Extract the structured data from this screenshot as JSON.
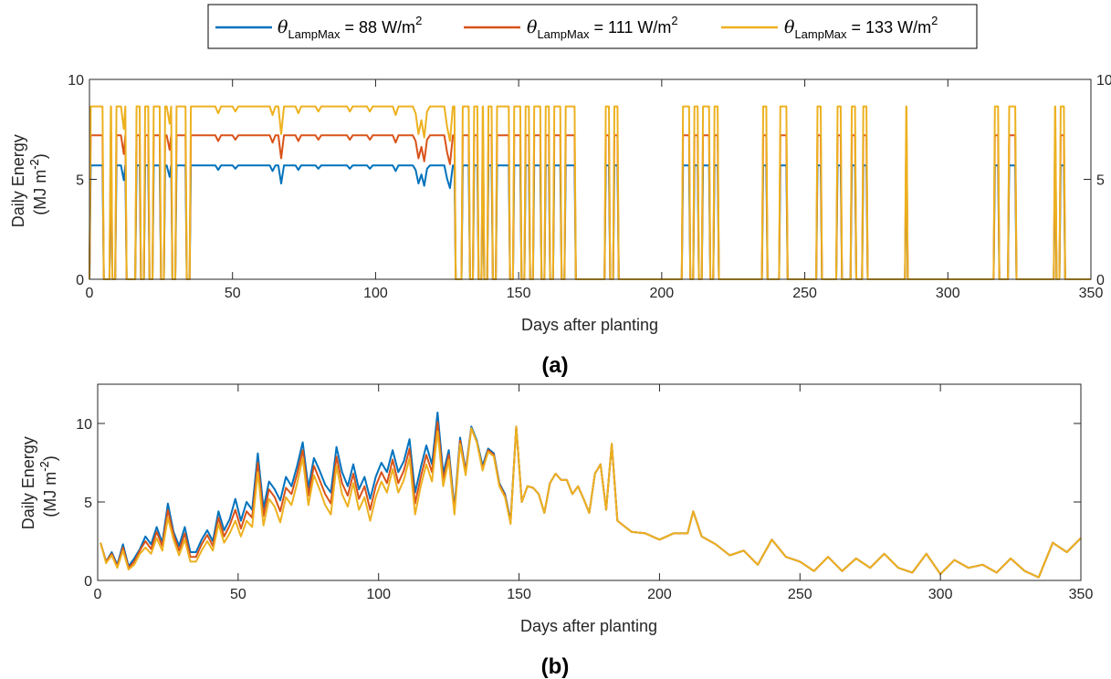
{
  "legend": {
    "symbol": "θ",
    "subscript": "LampMax",
    "entries": [
      {
        "value_text": " = 88 W/m",
        "sup": "2",
        "color": "#0072BD"
      },
      {
        "value_text": " = 111 W/m",
        "sup": "2",
        "color": "#D95319"
      },
      {
        "value_text": " = 133 W/m",
        "sup": "2",
        "color": "#EDB120"
      }
    ]
  },
  "chart_data": [
    {
      "type": "line",
      "panel_label": "(a)",
      "xlabel": "Days after planting",
      "ylabel_line1": "Daily Energy",
      "ylabel_line2": "(MJ m",
      "ylabel_sup": "-2",
      "ylabel_close": ")",
      "xlim": [
        0,
        350
      ],
      "ylim": [
        0,
        10
      ],
      "xticks": [
        "0",
        "50",
        "100",
        "150",
        "200",
        "250",
        "300",
        "350"
      ],
      "yticks": [
        "0",
        "5",
        "10"
      ],
      "series": [
        {
          "name": "θLampMax = 88 W/m2",
          "color": "#0072BD",
          "level": 5.7
        },
        {
          "name": "θLampMax = 111 W/m2",
          "color": "#D95319",
          "level": 7.2
        },
        {
          "name": "θLampMax = 133 W/m2",
          "color": "#EDB120",
          "level": 8.65
        }
      ],
      "on_intervals": [
        [
          0,
          5
        ],
        [
          7,
          8
        ],
        [
          9,
          13
        ],
        [
          16,
          18
        ],
        [
          19,
          21
        ],
        [
          22,
          25
        ],
        [
          26,
          29
        ],
        [
          30,
          34
        ],
        [
          35,
          128
        ],
        [
          130,
          133
        ],
        [
          134,
          136
        ],
        [
          137,
          138
        ],
        [
          139,
          141
        ],
        [
          142,
          147
        ],
        [
          148,
          151
        ],
        [
          152,
          154
        ],
        [
          155,
          158
        ],
        [
          159,
          161
        ],
        [
          162,
          165
        ],
        [
          166,
          170
        ],
        [
          180,
          182
        ],
        [
          183,
          185
        ],
        [
          207,
          210
        ],
        [
          211,
          213
        ],
        [
          214,
          217
        ],
        [
          218,
          220
        ],
        [
          235,
          237
        ],
        [
          241,
          244
        ],
        [
          254,
          256
        ],
        [
          261,
          263
        ],
        [
          266,
          268
        ],
        [
          270,
          272
        ],
        [
          285,
          286
        ],
        [
          316,
          318
        ],
        [
          321,
          324
        ],
        [
          337,
          338
        ],
        [
          339,
          341
        ]
      ],
      "dips": [
        [
          12,
          0.87
        ],
        [
          22,
          0.87
        ],
        [
          28,
          0.9
        ],
        [
          34,
          0.9
        ],
        [
          45,
          0.96
        ],
        [
          51,
          0.97
        ],
        [
          64,
          0.95
        ],
        [
          67,
          0.84
        ],
        [
          73,
          0.96
        ],
        [
          80,
          0.97
        ],
        [
          91,
          0.97
        ],
        [
          98,
          0.97
        ],
        [
          107,
          0.95
        ],
        [
          114,
          0.96
        ],
        [
          115,
          0.84
        ],
        [
          116,
          0.92
        ],
        [
          117,
          0.82
        ],
        [
          118,
          0.97
        ],
        [
          125,
          0.88
        ],
        [
          126,
          0.8
        ]
      ]
    },
    {
      "type": "line",
      "panel_label": "(b)",
      "xlabel": "Days after planting",
      "ylabel_line1": "Daily Energy",
      "ylabel_line2": "(MJ m",
      "ylabel_sup": "-2",
      "ylabel_close": ")",
      "xlim": [
        0,
        350
      ],
      "ylim": [
        0,
        12.5
      ],
      "xticks": [
        "0",
        "50",
        "100",
        "150",
        "200",
        "250",
        "300",
        "350"
      ],
      "yticks": [
        "0",
        "5",
        "10"
      ],
      "series": [
        {
          "name": "θLampMax = 88 W/m2",
          "color": "#0072BD"
        },
        {
          "name": "θLampMax = 111 W/m2",
          "color": "#D95319"
        },
        {
          "name": "θLampMax = 133 W/m2",
          "color": "#EDB120"
        }
      ],
      "x": [
        1,
        3,
        5,
        7,
        9,
        11,
        13,
        15,
        17,
        19,
        21,
        23,
        25,
        27,
        29,
        31,
        33,
        35,
        37,
        39,
        41,
        43,
        45,
        47,
        49,
        51,
        53,
        55,
        57,
        59,
        61,
        63,
        65,
        67,
        69,
        71,
        73,
        75,
        77,
        79,
        81,
        83,
        85,
        87,
        89,
        91,
        93,
        95,
        97,
        99,
        101,
        103,
        105,
        107,
        109,
        111,
        113,
        115,
        117,
        119,
        121,
        123,
        125,
        127,
        129,
        131,
        133,
        135,
        137,
        139,
        141,
        143,
        145,
        147,
        149,
        151,
        153,
        155,
        157,
        159,
        161,
        163,
        165,
        167,
        169,
        171,
        173,
        175,
        177,
        179,
        181,
        183,
        185,
        190,
        195,
        200,
        205,
        210,
        212,
        215,
        220,
        225,
        230,
        235,
        240,
        245,
        250,
        255,
        260,
        265,
        270,
        275,
        280,
        285,
        290,
        295,
        300,
        305,
        310,
        315,
        320,
        325,
        330,
        335,
        340,
        345,
        350
      ],
      "y_blue": [
        2.4,
        1.2,
        1.8,
        1.0,
        2.3,
        0.9,
        1.4,
        2.0,
        2.8,
        2.3,
        3.4,
        2.4,
        4.9,
        3.1,
        2.2,
        3.4,
        1.8,
        1.8,
        2.6,
        3.2,
        2.5,
        4.4,
        3.2,
        3.9,
        5.2,
        3.8,
        5.0,
        4.5,
        8.1,
        4.6,
        6.3,
        5.8,
        5.1,
        6.6,
        6.0,
        7.3,
        8.8,
        5.9,
        7.8,
        7.0,
        6.1,
        5.6,
        8.5,
        6.9,
        6.0,
        7.4,
        5.8,
        6.6,
        5.2,
        6.6,
        7.5,
        6.9,
        8.3,
        6.9,
        7.6,
        9.0,
        5.6,
        7.2,
        8.6,
        7.4,
        10.7,
        6.8,
        8.3,
        4.6,
        9.1,
        7.0,
        9.8,
        8.9,
        7.3,
        8.4,
        8.1,
        6.2,
        5.5,
        3.8,
        9.8,
        5.0,
        6.0,
        5.9,
        5.5,
        4.3,
        6.2,
        6.8,
        6.4,
        6.4,
        5.5,
        6.0,
        5.2,
        4.3,
        6.8,
        7.4,
        4.5,
        8.7,
        3.8,
        3.1,
        3.0,
        2.6,
        3.0,
        3.0,
        4.4,
        2.8,
        2.3,
        1.6,
        1.9,
        1.0,
        2.6,
        1.5,
        1.2,
        0.6,
        1.5,
        0.6,
        1.4,
        0.8,
        1.7,
        0.8,
        0.5,
        1.7,
        0.4,
        1.3,
        0.8,
        1.0,
        0.5,
        1.4,
        0.6,
        0.2,
        2.4,
        1.8,
        2.7
      ],
      "y_red": [
        2.4,
        1.2,
        1.7,
        0.9,
        2.1,
        0.8,
        1.2,
        1.9,
        2.5,
        2.0,
        3.1,
        2.2,
        4.5,
        2.9,
        1.9,
        3.0,
        1.5,
        1.5,
        2.3,
        2.9,
        2.2,
        4.0,
        2.8,
        3.5,
        4.5,
        3.3,
        4.4,
        4.0,
        7.5,
        4.1,
        5.8,
        5.3,
        4.4,
        5.9,
        5.5,
        6.8,
        8.3,
        5.4,
        7.3,
        6.4,
        5.5,
        4.9,
        7.9,
        6.2,
        5.4,
        6.8,
        5.2,
        6.0,
        4.5,
        6.0,
        6.9,
        6.2,
        7.7,
        6.2,
        7.0,
        8.4,
        4.9,
        6.6,
        8.0,
        6.9,
        10.1,
        6.4,
        8.0,
        4.4,
        8.9,
        6.9,
        9.7,
        8.8,
        7.1,
        8.3,
        8.0,
        6.1,
        5.4,
        3.7,
        9.8,
        5.0,
        6.0,
        5.9,
        5.5,
        4.3,
        6.2,
        6.8,
        6.4,
        6.4,
        5.5,
        6.0,
        5.2,
        4.3,
        6.8,
        7.4,
        4.5,
        8.7,
        3.8,
        3.1,
        3.0,
        2.6,
        3.0,
        3.0,
        4.4,
        2.8,
        2.3,
        1.6,
        1.9,
        1.0,
        2.6,
        1.5,
        1.2,
        0.6,
        1.5,
        0.6,
        1.4,
        0.8,
        1.7,
        0.8,
        0.5,
        1.7,
        0.4,
        1.3,
        0.8,
        1.0,
        0.5,
        1.4,
        0.6,
        0.2,
        2.4,
        1.8,
        2.7
      ],
      "y_yellow": [
        2.4,
        1.1,
        1.6,
        0.8,
        1.9,
        0.7,
        1.0,
        1.7,
        2.1,
        1.7,
        2.7,
        1.9,
        4.0,
        2.6,
        1.6,
        2.6,
        1.2,
        1.2,
        1.9,
        2.5,
        1.9,
        3.6,
        2.4,
        3.0,
        3.8,
        2.8,
        3.8,
        3.4,
        6.9,
        3.5,
        5.2,
        4.7,
        3.7,
        5.3,
        4.8,
        6.2,
        7.8,
        4.8,
        6.7,
        5.8,
        4.8,
        4.2,
        7.3,
        5.5,
        4.7,
        6.2,
        4.5,
        5.3,
        3.8,
        5.3,
        6.3,
        5.6,
        7.1,
        5.6,
        6.4,
        7.8,
        4.2,
        6.0,
        7.4,
        6.3,
        9.5,
        6.0,
        7.7,
        4.2,
        8.7,
        6.7,
        9.7,
        8.8,
        7.0,
        8.2,
        7.9,
        6.0,
        5.3,
        3.6,
        9.8,
        5.0,
        6.0,
        5.9,
        5.5,
        4.3,
        6.2,
        6.8,
        6.4,
        6.4,
        5.5,
        6.0,
        5.2,
        4.3,
        6.8,
        7.4,
        4.5,
        8.7,
        3.8,
        3.1,
        3.0,
        2.6,
        3.0,
        3.0,
        4.4,
        2.8,
        2.3,
        1.6,
        1.9,
        1.0,
        2.6,
        1.5,
        1.2,
        0.6,
        1.5,
        0.6,
        1.4,
        0.8,
        1.7,
        0.8,
        0.5,
        1.7,
        0.4,
        1.3,
        0.8,
        1.0,
        0.5,
        1.4,
        0.6,
        0.2,
        2.4,
        1.8,
        2.7
      ]
    }
  ]
}
